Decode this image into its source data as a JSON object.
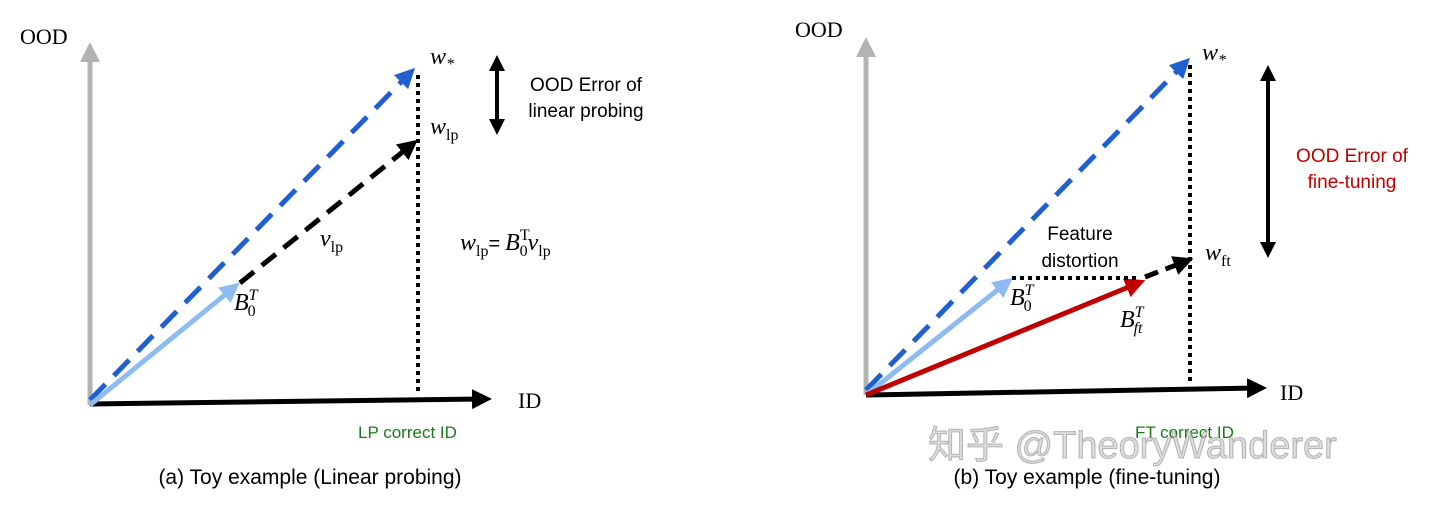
{
  "panels": [
    {
      "y_axis": "OOD",
      "x_axis": "ID",
      "w_star": {
        "base": "w",
        "sub": "*"
      },
      "w_lp": {
        "base": "w",
        "sub": "lp"
      },
      "error_label": [
        "OOD Error of",
        "linear probing"
      ],
      "v_lp": {
        "base": "v",
        "sub": "lp"
      },
      "equation": {
        "lhs_base": "w",
        "lhs_sub": "lp",
        "eq": "=",
        "b_base": "B",
        "b_sub": "0",
        "b_sup": "T",
        "v_base": "v",
        "v_sub": "lp"
      },
      "b0": {
        "base": "B",
        "sub": "0",
        "sup": "T"
      },
      "correct_id": "LP correct ID",
      "caption": "(a) Toy example (Linear probing)"
    },
    {
      "y_axis": "OOD",
      "x_axis": "ID",
      "w_star": {
        "base": "w",
        "sub": "*"
      },
      "error_label": [
        "OOD Error of",
        "fine-tuning"
      ],
      "distortion_label": [
        "Feature",
        "distortion"
      ],
      "w_ft": {
        "base": "w",
        "sub": "ft"
      },
      "b0": {
        "base": "B",
        "sub": "0",
        "sup": "T"
      },
      "bft": {
        "base": "B",
        "sub": "ft",
        "sup": "T"
      },
      "correct_id": "FT correct ID",
      "caption": "(b) Toy example (fine-tuning)"
    }
  ],
  "watermark": "知乎 @TheoryWanderer"
}
